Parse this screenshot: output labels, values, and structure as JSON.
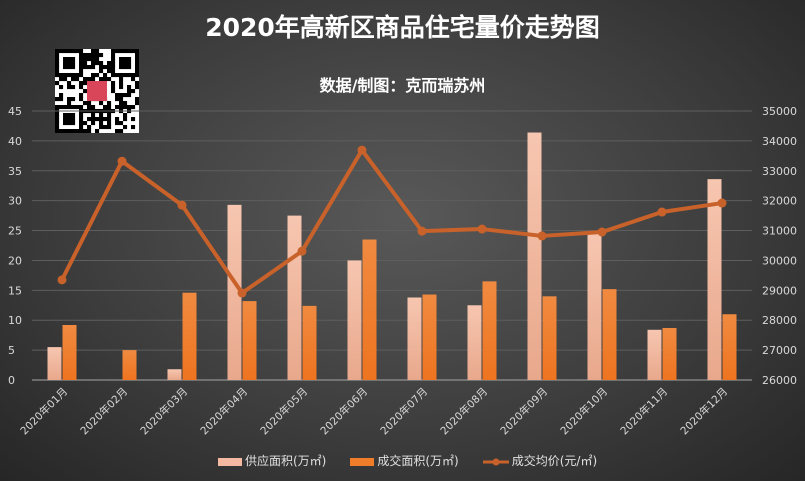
{
  "chart_data": {
    "type": "bar+line",
    "title": "2020年高新区商品住宅量价走势图",
    "subtitle": "数据/制图：克而瑞苏州",
    "categories": [
      "2020年01月",
      "2020年02月",
      "2020年03月",
      "2020年04月",
      "2020年05月",
      "2020年06月",
      "2020年07月",
      "2020年08月",
      "2020年09月",
      "2020年10月",
      "2020年11月",
      "2020年12月"
    ],
    "left_axis": {
      "ylim": [
        0,
        45
      ],
      "ticks": [
        0,
        5,
        10,
        15,
        20,
        25,
        30,
        35,
        40,
        45
      ]
    },
    "right_axis": {
      "ylim": [
        26000,
        35000
      ],
      "ticks": [
        26000,
        27000,
        28000,
        29000,
        30000,
        31000,
        32000,
        33000,
        34000,
        35000
      ]
    },
    "grid": true,
    "legend_position": "bottom",
    "series": [
      {
        "name": "供应面积(万㎡)",
        "type": "bar",
        "axis": "left",
        "color": "#f4b9a0",
        "values": [
          5.5,
          0,
          1.8,
          29.3,
          27.5,
          20.0,
          13.8,
          12.5,
          41.4,
          24.6,
          8.4,
          33.6
        ]
      },
      {
        "name": "成交面积(万㎡)",
        "type": "bar",
        "axis": "left",
        "color": "#f07d2a",
        "values": [
          9.2,
          5.0,
          14.6,
          13.2,
          12.4,
          23.5,
          14.3,
          16.5,
          14.0,
          15.2,
          8.7,
          11.0
        ]
      },
      {
        "name": "成交均价(元/㎡)",
        "type": "line",
        "axis": "right",
        "color": "#c8622a",
        "values": [
          29350,
          33320,
          31850,
          28910,
          30310,
          33690,
          30980,
          31050,
          30820,
          30950,
          31620,
          31920
        ]
      }
    ]
  },
  "logo": {
    "type": "qr-code"
  }
}
